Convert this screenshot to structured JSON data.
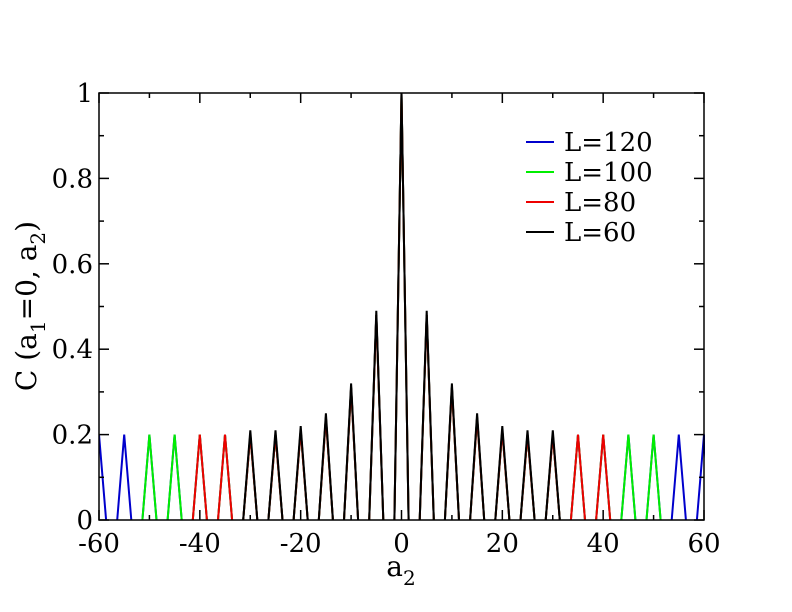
{
  "chart_data": {
    "type": "line",
    "title": "",
    "xlabel": {
      "base": "a",
      "sub": "2"
    },
    "ylabel": {
      "prefix": "C (a",
      "sub1": "1",
      "middle": "=0, a",
      "sub2": "2",
      "suffix": ")"
    },
    "xlim": [
      -60,
      60
    ],
    "ylim": [
      0,
      1
    ],
    "xticks": [
      -60,
      -40,
      -20,
      0,
      20,
      40,
      60
    ],
    "yticks": [
      0,
      0.2,
      0.4,
      0.6,
      0.8,
      1
    ],
    "xtick_labels": [
      "-60",
      "-40",
      "-20",
      "0",
      "20",
      "40",
      "60"
    ],
    "ytick_labels": [
      "0",
      "0.2",
      "0.4",
      "0.6",
      "0.8",
      "1"
    ],
    "x_minor_step": 10,
    "y_minor_step": 0.1,
    "grid": false,
    "legend_position": "top-right",
    "peak_half_width": 1.4,
    "series": [
      {
        "name": "L=120",
        "color": "#0000cc",
        "peaks": [
          [
            -60,
            0.2
          ],
          [
            -55,
            0.2
          ],
          [
            -50,
            0.2
          ],
          [
            -45,
            0.2
          ],
          [
            -40,
            0.2
          ],
          [
            -35,
            0.2
          ],
          [
            -30,
            0.2
          ],
          [
            -25,
            0.2
          ],
          [
            -20,
            0.21
          ],
          [
            -15,
            0.24
          ],
          [
            -10,
            0.31
          ],
          [
            -5,
            0.48
          ],
          [
            0,
            1.0
          ],
          [
            5,
            0.48
          ],
          [
            10,
            0.31
          ],
          [
            15,
            0.24
          ],
          [
            20,
            0.21
          ],
          [
            25,
            0.2
          ],
          [
            30,
            0.2
          ],
          [
            35,
            0.2
          ],
          [
            40,
            0.2
          ],
          [
            45,
            0.2
          ],
          [
            50,
            0.2
          ],
          [
            55,
            0.2
          ],
          [
            60,
            0.2
          ]
        ]
      },
      {
        "name": "L=100",
        "color": "#00ee00",
        "peaks": [
          [
            -50,
            0.2
          ],
          [
            -45,
            0.2
          ],
          [
            -40,
            0.2
          ],
          [
            -35,
            0.2
          ],
          [
            -30,
            0.2
          ],
          [
            -25,
            0.2
          ],
          [
            -20,
            0.21
          ],
          [
            -15,
            0.24
          ],
          [
            -10,
            0.31
          ],
          [
            -5,
            0.48
          ],
          [
            0,
            1.0
          ],
          [
            5,
            0.48
          ],
          [
            10,
            0.31
          ],
          [
            15,
            0.24
          ],
          [
            20,
            0.21
          ],
          [
            25,
            0.2
          ],
          [
            30,
            0.2
          ],
          [
            35,
            0.2
          ],
          [
            40,
            0.2
          ],
          [
            45,
            0.2
          ],
          [
            50,
            0.2
          ]
        ]
      },
      {
        "name": "L=80",
        "color": "#ee0000",
        "peaks": [
          [
            -40,
            0.2
          ],
          [
            -35,
            0.2
          ],
          [
            -30,
            0.2
          ],
          [
            -25,
            0.2
          ],
          [
            -20,
            0.21
          ],
          [
            -15,
            0.24
          ],
          [
            -10,
            0.31
          ],
          [
            -5,
            0.48
          ],
          [
            0,
            1.0
          ],
          [
            5,
            0.48
          ],
          [
            10,
            0.31
          ],
          [
            15,
            0.24
          ],
          [
            20,
            0.21
          ],
          [
            25,
            0.2
          ],
          [
            30,
            0.2
          ],
          [
            35,
            0.2
          ],
          [
            40,
            0.2
          ]
        ]
      },
      {
        "name": "L=60",
        "color": "#000000",
        "peaks": [
          [
            -30,
            0.21
          ],
          [
            -25,
            0.21
          ],
          [
            -20,
            0.22
          ],
          [
            -15,
            0.25
          ],
          [
            -10,
            0.32
          ],
          [
            -5,
            0.49
          ],
          [
            0,
            1.0
          ],
          [
            5,
            0.49
          ],
          [
            10,
            0.32
          ],
          [
            15,
            0.25
          ],
          [
            20,
            0.22
          ],
          [
            25,
            0.21
          ],
          [
            30,
            0.21
          ]
        ]
      }
    ]
  }
}
